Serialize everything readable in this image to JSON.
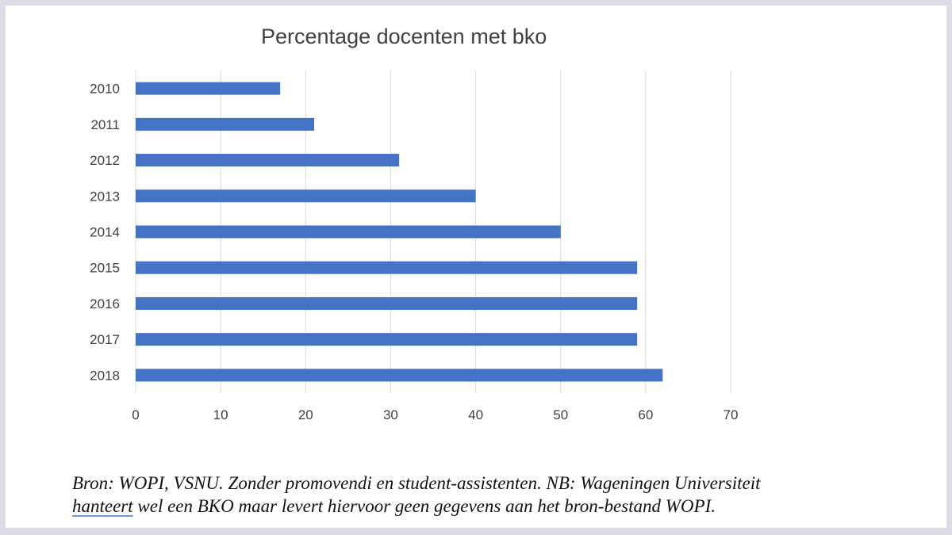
{
  "chart_data": {
    "type": "bar",
    "orientation": "horizontal",
    "title": "Percentage docenten met bko",
    "xlabel": "",
    "ylabel": "",
    "categories": [
      "2010",
      "2011",
      "2012",
      "2013",
      "2014",
      "2015",
      "2016",
      "2017",
      "2018"
    ],
    "values": [
      17,
      21,
      31,
      40,
      50,
      59,
      59,
      59,
      62
    ],
    "xlim": [
      0,
      70
    ],
    "xticks": [
      0,
      10,
      20,
      30,
      40,
      50,
      60,
      70
    ],
    "grid": "vertical",
    "legend": "none",
    "bar_color": "#4472c4"
  },
  "caption": {
    "line1": "Bron: WOPI, VSNU. Zonder promovendi en student-assistenten. NB: Wageningen Universiteit",
    "line2_underlined": "hanteert",
    "line2_rest": " wel een BKO maar levert hiervoor geen gegevens aan het bron-bestand WOPI."
  },
  "colors": {
    "background": "#dddbe6",
    "card": "#ffffff",
    "gridline": "#d9d9d9",
    "text": "#404040"
  }
}
